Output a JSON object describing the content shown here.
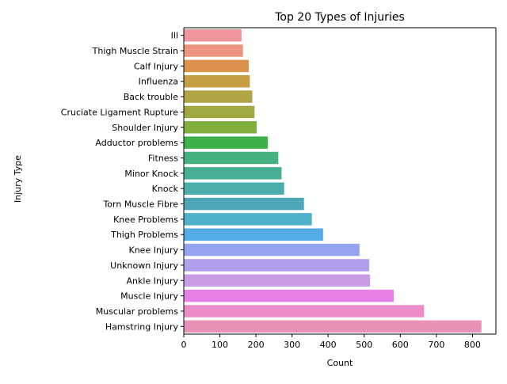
{
  "chart_data": {
    "type": "bar",
    "orientation": "horizontal",
    "title": "Top 20 Types of Injuries",
    "xlabel": "Count",
    "ylabel": "Injury Type",
    "xlim": [
      0,
      865
    ],
    "xticks": [
      0,
      100,
      200,
      300,
      400,
      500,
      600,
      700,
      800
    ],
    "grid": false,
    "legend": "none",
    "categories": [
      "Ill",
      "Thigh Muscle Strain",
      "Calf Injury",
      "Influenza",
      "Back trouble",
      "Cruciate Ligament Rupture",
      "Shoulder Injury",
      "Adductor problems",
      "Fitness",
      "Minor Knock",
      "Knock",
      "Torn Muscle Fibre",
      "Knee Problems",
      "Thigh Problems",
      "Knee Injury",
      "Unknown Injury",
      "Ankle Injury",
      "Muscle Injury",
      "Muscular problems",
      "Hamstring Injury"
    ],
    "values": [
      160,
      164,
      180,
      183,
      190,
      196,
      202,
      233,
      262,
      271,
      278,
      333,
      355,
      386,
      487,
      514,
      516,
      582,
      666,
      825
    ],
    "colors": [
      "#f0949d",
      "#ec9580",
      "#dc924a",
      "#c59f41",
      "#b1a444",
      "#9ea942",
      "#82b03f",
      "#3fb14a",
      "#47b27f",
      "#49af94",
      "#4aadaa",
      "#4ba6b6",
      "#4eb0c9",
      "#53ace6",
      "#93a5ee",
      "#b1a0ee",
      "#c99de5",
      "#e681e8",
      "#ec8cc8",
      "#e893b5"
    ]
  }
}
